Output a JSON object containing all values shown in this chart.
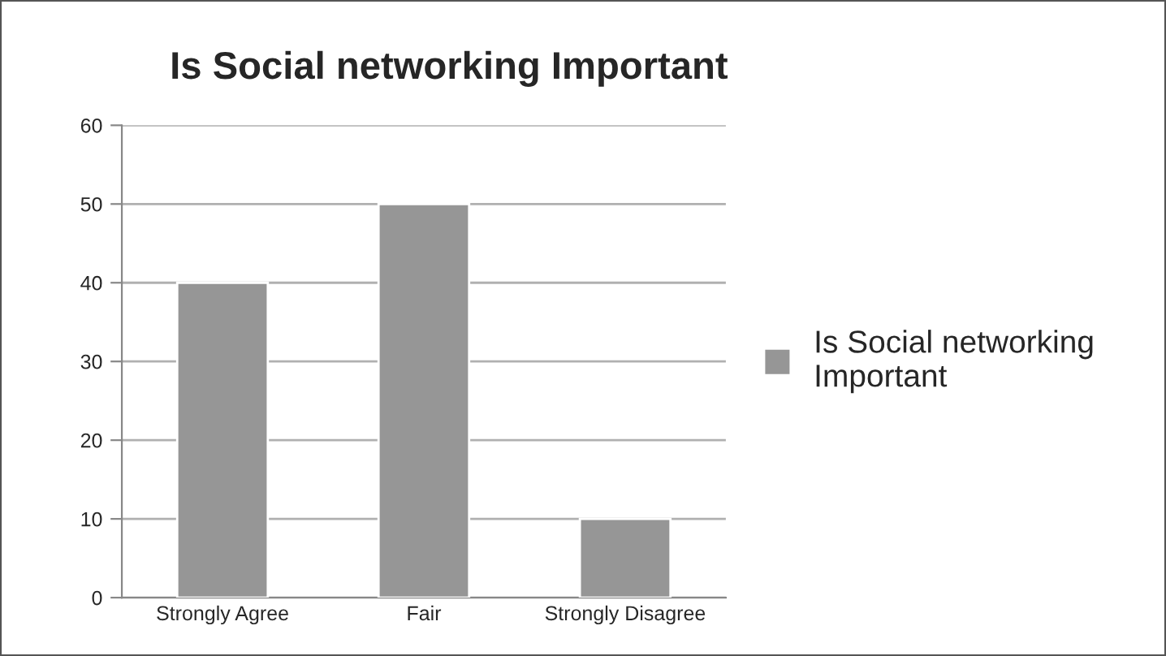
{
  "chart_data": {
    "type": "bar",
    "title": "Is Social networking Important",
    "categories": [
      "Strongly Agree",
      "Fair",
      "Strongly Disagree"
    ],
    "series": [
      {
        "name": "Is Social networking Important",
        "color": "#969696",
        "values": [
          40,
          50,
          10
        ]
      }
    ],
    "ylim": [
      0,
      60
    ],
    "yticks": [
      0,
      10,
      20,
      30,
      40,
      50,
      60
    ],
    "grid": "y",
    "legend": "right"
  }
}
